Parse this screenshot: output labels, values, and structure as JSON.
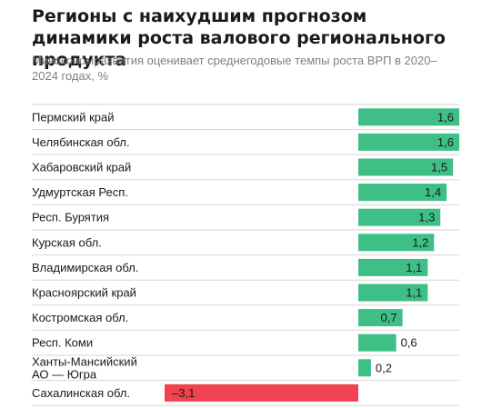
{
  "header": {
    "title": "Регионы с наихудшим прогнозом динамики роста валового регионального продукта",
    "subtitle": "Минэкономразвития оценивает среднегодовые темпы роста ВРП в 2020–2024 годах, %"
  },
  "colors": {
    "positive": "#3dbf86",
    "negative": "#f0434f",
    "separator": "#d6d6d6"
  },
  "chart_data": {
    "type": "bar",
    "orientation": "horizontal",
    "title": "Регионы с наихудшим прогнозом динамики роста валового регионального продукта",
    "subtitle": "Минэкономразвития оценивает среднегодовые темпы роста ВРП в 2020–2024 годах, %",
    "xlabel": "",
    "ylabel": "",
    "grid": false,
    "categories": [
      [
        "Пермский край"
      ],
      [
        "Челябинская обл."
      ],
      [
        "Хабаровский край"
      ],
      [
        "Удмуртская Респ."
      ],
      [
        "Респ. Бурятия"
      ],
      [
        "Курская обл."
      ],
      [
        "Владимирская обл."
      ],
      [
        "Красноярский край"
      ],
      [
        "Костромская обл."
      ],
      [
        "Респ. Коми"
      ],
      [
        "Ханты-Мансийский",
        "АО — Югра"
      ],
      [
        "Сахалинская обл."
      ]
    ],
    "values": [
      1.6,
      1.6,
      1.5,
      1.4,
      1.3,
      1.2,
      1.1,
      1.1,
      0.7,
      0.6,
      0.2,
      -3.1
    ],
    "value_labels": [
      "1,6",
      "1,6",
      "1,5",
      "1,4",
      "1,3",
      "1,2",
      "1,1",
      "1,1",
      "0,7",
      "0,6",
      "0,2",
      "–3,1"
    ],
    "xlim": [
      -3.1,
      1.6
    ]
  }
}
